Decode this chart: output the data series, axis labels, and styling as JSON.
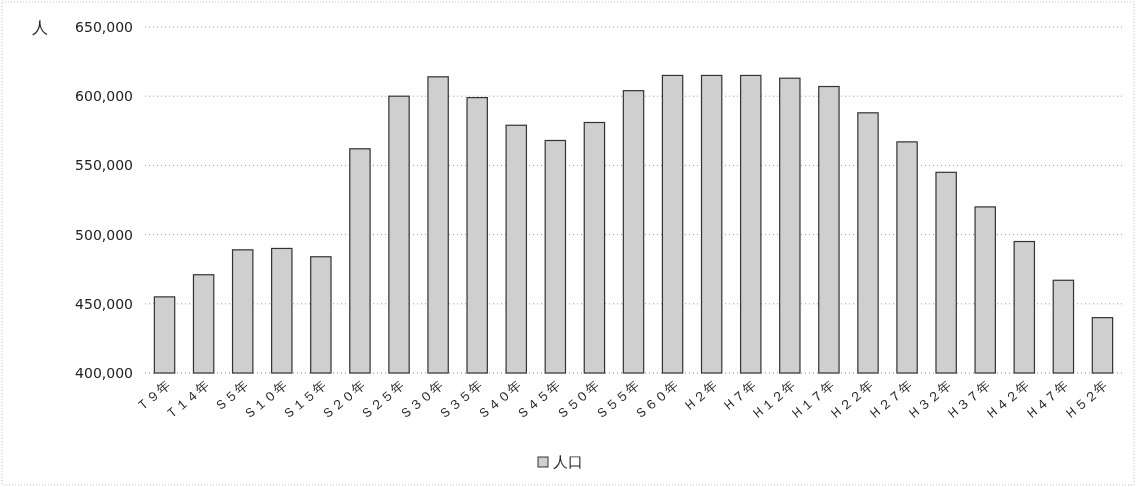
{
  "chart_data": {
    "type": "bar",
    "ylabel": "人",
    "categories": [
      "Ｔ９年",
      "Ｔ１４年",
      "Ｓ５年",
      "Ｓ１０年",
      "Ｓ１５年",
      "Ｓ２０年",
      "Ｓ２５年",
      "Ｓ３０年",
      "Ｓ３５年",
      "Ｓ４０年",
      "Ｓ４５年",
      "Ｓ５０年",
      "Ｓ５５年",
      "Ｓ６０年",
      "Ｈ２年",
      "Ｈ７年",
      "Ｈ１２年",
      "Ｈ１７年",
      "Ｈ２２年",
      "Ｈ２７年",
      "Ｈ３２年",
      "Ｈ３７年",
      "Ｈ４２年",
      "Ｈ４７年",
      "Ｈ５２年"
    ],
    "series": [
      {
        "name": "人口",
        "color": "#cfcfcf",
        "values": [
          455000,
          471000,
          489000,
          490000,
          484000,
          562000,
          600000,
          614000,
          599000,
          579000,
          568000,
          581000,
          604000,
          615000,
          615000,
          615000,
          613000,
          607000,
          588000,
          567000,
          545000,
          520000,
          495000,
          467000,
          440000
        ]
      }
    ],
    "ylim": [
      400000,
      650000
    ],
    "yticks": [
      {
        "value": 400000,
        "label": "400,000"
      },
      {
        "value": 450000,
        "label": "450,000"
      },
      {
        "value": 500000,
        "label": "500,000"
      },
      {
        "value": 550000,
        "label": "550,000"
      },
      {
        "value": 600000,
        "label": "600,000"
      },
      {
        "value": 650000,
        "label": "650,000"
      }
    ],
    "grid": "y",
    "legend": "bottom"
  }
}
